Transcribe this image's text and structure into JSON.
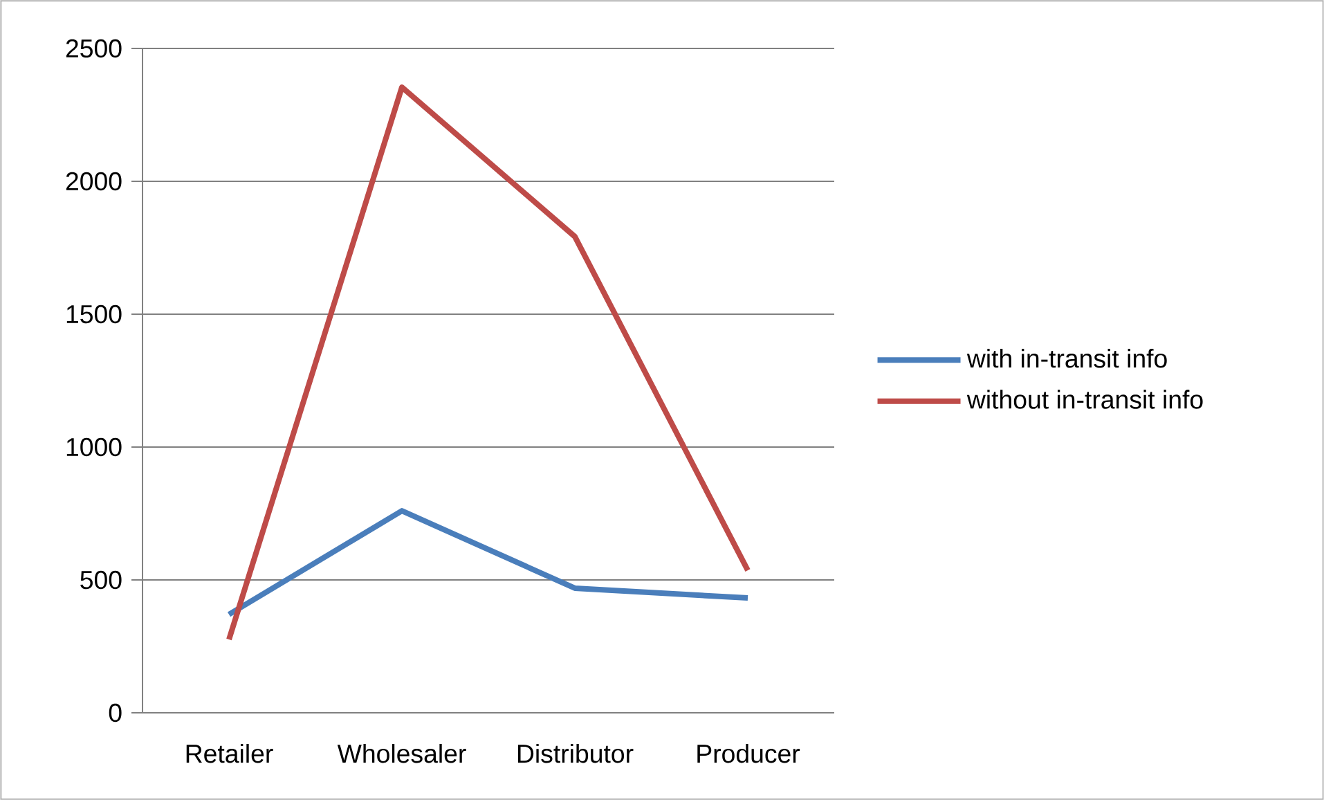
{
  "chart_data": {
    "type": "line",
    "categories": [
      "Retailer",
      "Wholesaler",
      "Distributor",
      "Producer"
    ],
    "series": [
      {
        "name": "with in-transit info",
        "color": "#4a7ebb",
        "values": [
          370,
          760,
          469,
          432
        ]
      },
      {
        "name": "without in-transit info",
        "color": "#be4b48",
        "values": [
          276,
          2354,
          1792,
          536
        ]
      }
    ],
    "ylim": [
      0,
      2500
    ],
    "yticks": [
      0,
      500,
      1000,
      1500,
      2000,
      2500
    ],
    "grid": "y",
    "legend": "right",
    "marker": "none",
    "line_style": "solid"
  }
}
